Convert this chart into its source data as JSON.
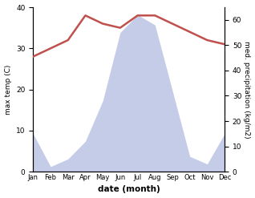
{
  "months": [
    "Jan",
    "Feb",
    "Mar",
    "Apr",
    "May",
    "Jun",
    "Jul",
    "Aug",
    "Sep",
    "Oct",
    "Nov",
    "Dec"
  ],
  "temperature": [
    28,
    30,
    32,
    38,
    36,
    35,
    38,
    38,
    36,
    34,
    32,
    31
  ],
  "precipitation": [
    15,
    2,
    5,
    12,
    28,
    55,
    62,
    58,
    32,
    6,
    3,
    15
  ],
  "temp_color": "#c0504d",
  "precip_fill_color": "#c5cce8",
  "ylabel_left": "max temp (C)",
  "ylabel_right": "med. precipitation (kg/m2)",
  "xlabel": "date (month)",
  "ylim_left": [
    0,
    40
  ],
  "ylim_right": [
    0,
    65
  ],
  "yticks_left": [
    0,
    10,
    20,
    30,
    40
  ],
  "yticks_right": [
    0,
    10,
    20,
    30,
    40,
    50,
    60
  ],
  "background_color": "#ffffff",
  "temp_linewidth": 1.8
}
